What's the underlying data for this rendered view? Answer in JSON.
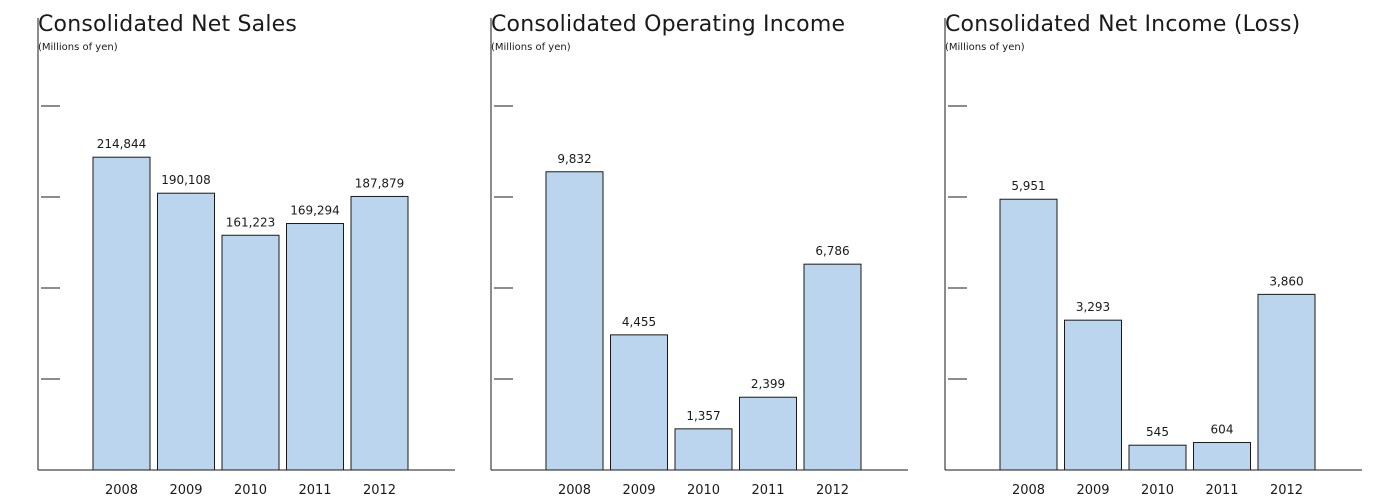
{
  "chart_data": [
    {
      "type": "bar",
      "title": "Consolidated Net Sales",
      "unit": "(Millions of yen)",
      "categories": [
        "2008",
        "2009",
        "2010",
        "2011",
        "2012"
      ],
      "values": [
        214844,
        190108,
        161223,
        169294,
        187879
      ],
      "value_labels": [
        "214,844",
        "190,108",
        "161,223",
        "169,294",
        "187,879"
      ],
      "ylim": [
        0,
        250000
      ],
      "bar_color": "#bcd5ef",
      "bar_edge_color": "#1a1a1a",
      "grid": false
    },
    {
      "type": "bar",
      "title": "Consolidated Operating Income",
      "unit": "(Millions of yen)",
      "categories": [
        "2008",
        "2009",
        "2010",
        "2011",
        "2012"
      ],
      "values": [
        9832,
        4455,
        1357,
        2399,
        6786
      ],
      "value_labels": [
        "9,832",
        "4,455",
        "1,357",
        "2,399",
        "6,786"
      ],
      "ylim": [
        0,
        12000
      ],
      "bar_color": "#bcd5ef",
      "bar_edge_color": "#1a1a1a",
      "grid": false
    },
    {
      "type": "bar",
      "title": "Consolidated Net Income (Loss)",
      "unit": "(Millions of yen)",
      "categories": [
        "2008",
        "2009",
        "2010",
        "2011",
        "2012"
      ],
      "values": [
        5951,
        3293,
        545,
        604,
        3860
      ],
      "value_labels": [
        "5,951",
        "3,293",
        "545",
        "604",
        "3,860"
      ],
      "ylim": [
        0,
        8000
      ],
      "bar_color": "#bcd5ef",
      "bar_edge_color": "#1a1a1a",
      "grid": false
    }
  ]
}
